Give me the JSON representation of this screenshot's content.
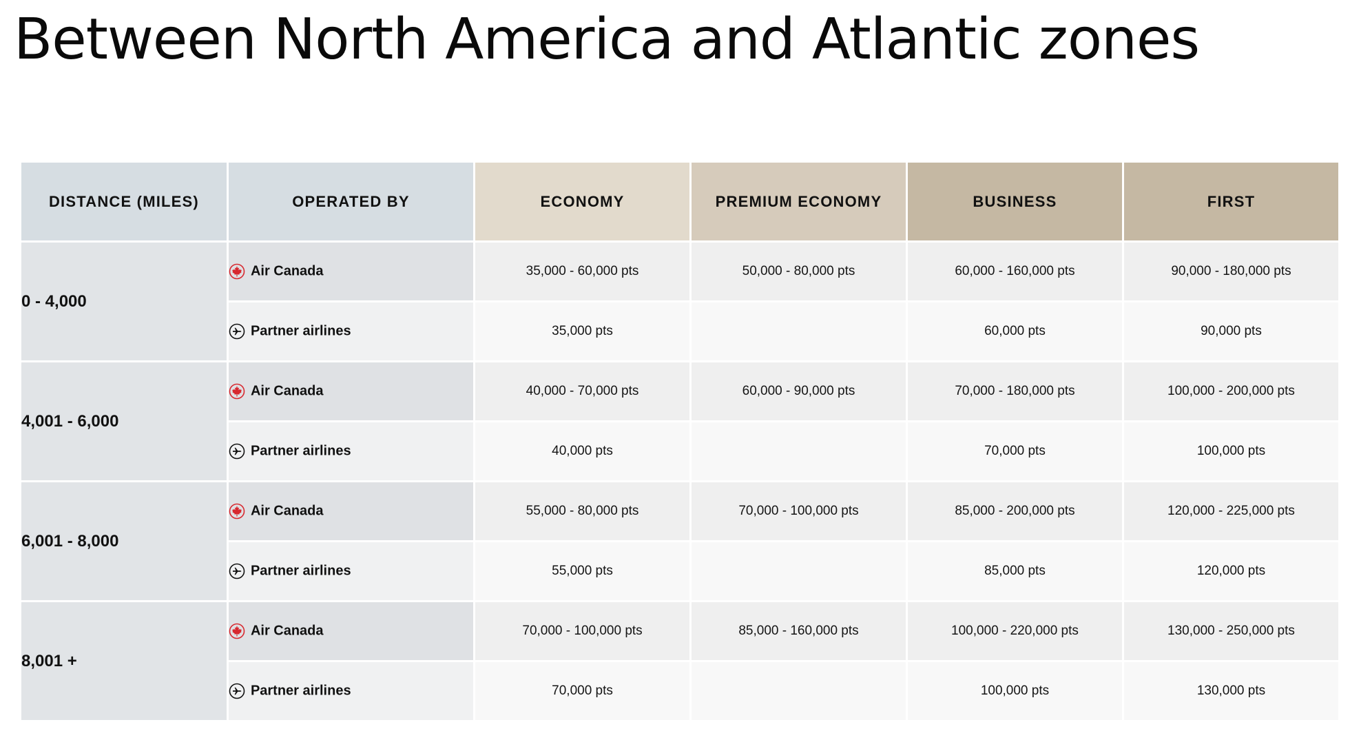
{
  "title": "Between North America and Atlantic zones",
  "headers": {
    "distance": "DISTANCE (MILES)",
    "operated_by": "OPERATED BY",
    "economy": "ECONOMY",
    "premium_economy": "PREMIUM ECONOMY",
    "business": "BUSINESS",
    "first": "FIRST"
  },
  "operators": {
    "air_canada": {
      "label": "Air Canada",
      "icon": "maple-leaf-icon",
      "color": "#d7282f"
    },
    "partner": {
      "label": "Partner airlines",
      "icon": "plane-circle-icon",
      "color": "#111111"
    }
  },
  "rows": [
    {
      "distance": "0 - 4,000",
      "air_canada": {
        "economy": "35,000 - 60,000 pts",
        "premium_economy": "50,000 - 80,000 pts",
        "business": "60,000 - 160,000 pts",
        "first": "90,000 - 180,000 pts"
      },
      "partner": {
        "economy": "35,000 pts",
        "premium_economy": "",
        "business": "60,000 pts",
        "first": "90,000 pts"
      }
    },
    {
      "distance": "4,001 - 6,000",
      "air_canada": {
        "economy": "40,000 - 70,000 pts",
        "premium_economy": "60,000 - 90,000 pts",
        "business": "70,000 - 180,000 pts",
        "first": "100,000 - 200,000 pts"
      },
      "partner": {
        "economy": "40,000 pts",
        "premium_economy": "",
        "business": "70,000 pts",
        "first": "100,000 pts"
      }
    },
    {
      "distance": "6,001 - 8,000",
      "air_canada": {
        "economy": "55,000 - 80,000 pts",
        "premium_economy": "70,000 - 100,000 pts",
        "business": "85,000 - 200,000 pts",
        "first": "120,000 - 225,000 pts"
      },
      "partner": {
        "economy": "55,000 pts",
        "premium_economy": "",
        "business": "85,000 pts",
        "first": "120,000 pts"
      }
    },
    {
      "distance": "8,001 +",
      "air_canada": {
        "economy": "70,000 - 100,000 pts",
        "premium_economy": "85,000 - 160,000 pts",
        "business": "100,000 - 220,000 pts",
        "first": "130,000 - 250,000 pts"
      },
      "partner": {
        "economy": "70,000 pts",
        "premium_economy": "",
        "business": "100,000 pts",
        "first": "130,000 pts"
      }
    }
  ]
}
